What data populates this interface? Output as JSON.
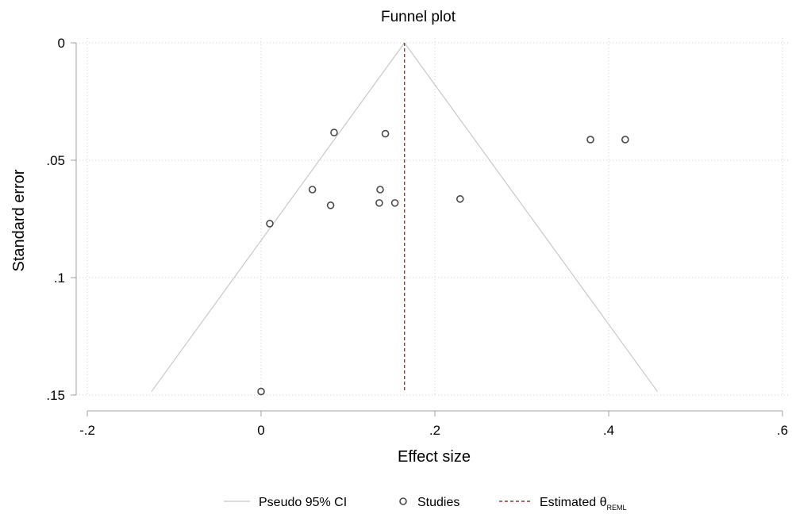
{
  "chart_data": {
    "type": "scatter",
    "title": "Funnel plot",
    "xlabel": "Effect size",
    "ylabel": "Standard error",
    "xlim": [
      -0.2,
      0.6
    ],
    "ylim": [
      0,
      0.15
    ],
    "y_reversed": true,
    "grid": true,
    "x_ticks": [
      {
        "value": -0.2,
        "label": "-.2"
      },
      {
        "value": 0,
        "label": "0"
      },
      {
        "value": 0.2,
        "label": ".2"
      },
      {
        "value": 0.4,
        "label": ".4"
      },
      {
        "value": 0.6,
        "label": ".6"
      }
    ],
    "y_ticks": [
      {
        "value": 0,
        "label": "0"
      },
      {
        "value": 0.05,
        "label": ".05"
      },
      {
        "value": 0.1,
        "label": ".1"
      },
      {
        "value": 0.15,
        "label": ".15"
      }
    ],
    "estimate": 0.165,
    "ci_se_max": 0.1485,
    "studies": [
      {
        "x": 0.084,
        "y": 0.0382
      },
      {
        "x": 0.143,
        "y": 0.0387
      },
      {
        "x": 0.379,
        "y": 0.0412
      },
      {
        "x": 0.419,
        "y": 0.0412
      },
      {
        "x": 0.059,
        "y": 0.0625
      },
      {
        "x": 0.137,
        "y": 0.0625
      },
      {
        "x": 0.229,
        "y": 0.0665
      },
      {
        "x": 0.136,
        "y": 0.0682
      },
      {
        "x": 0.154,
        "y": 0.0682
      },
      {
        "x": 0.08,
        "y": 0.0692
      },
      {
        "x": 0.01,
        "y": 0.077
      },
      {
        "x": 0.0,
        "y": 0.1485
      }
    ],
    "legend": {
      "placement": "bottom",
      "ci_label": "Pseudo 95% CI",
      "studies_label": "Studies",
      "estimate_label": "Estimated θ",
      "estimate_subscript": "REML"
    },
    "colors": {
      "ci_line": "#c8c8c8",
      "estimate_line": "#a03232",
      "markers": "#4a4a4a",
      "grid": "#d2d2d2",
      "axis": "#a0a0a0"
    }
  }
}
